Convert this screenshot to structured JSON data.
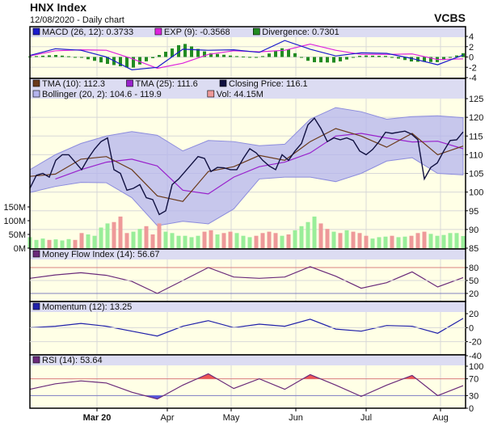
{
  "header": {
    "title": "HNX Index",
    "subtitle": "12/08/2020 - Daily chart",
    "brand": "VCBS"
  },
  "colors": {
    "plot_bg": "#ffffe6",
    "legend_bg": "#dcdcf2",
    "grid": "#d8d8d8",
    "macd": "#1a1acc",
    "exp": "#dd22dd",
    "divergence": "#228b22",
    "tma10": "#6b3b1b",
    "tma25": "#9922cc",
    "close": "#101040",
    "bollinger_fill": "#b4b4ee",
    "bollinger_line": "#8c8cdd",
    "vol_up": "#99ee99",
    "vol_down": "#ee9999",
    "indicator": "#6a2a7a",
    "momentum": "#2020aa",
    "over": "#ee5555",
    "under": "#5555dd",
    "upper_level": "#d88080",
    "lower_level": "#8080c0"
  },
  "chart_data": {
    "type": "line",
    "x_ticks": [
      "Mar 20",
      "Apr",
      "May",
      "Jun",
      "Jul",
      "Aug"
    ],
    "macd_panel": {
      "legend": [
        {
          "label": "MACD (26, 12): 0.3733",
          "color": "#1a1acc"
        },
        {
          "label": "EXP (9): -0.3568",
          "color": "#dd22dd"
        },
        {
          "label": "Divergence: 0.7301",
          "color": "#228b22"
        }
      ],
      "ylim": [
        -4,
        4
      ],
      "y_ticks": [
        4,
        2,
        0,
        -2,
        -4
      ],
      "macd": [
        0.3,
        1.6,
        1.3,
        0.0,
        -2.5,
        -2.0,
        1.5,
        1.3,
        1.4,
        0.9,
        3.2,
        1.5,
        0.2,
        0.8,
        0.7,
        -0.3,
        -1.5,
        0.37
      ],
      "exp": [
        0.2,
        1.2,
        1.4,
        1.3,
        -0.3,
        -2.2,
        -1.2,
        0.5,
        1.2,
        1.0,
        1.3,
        2.5,
        1.3,
        0.5,
        0.5,
        0.6,
        -0.5,
        -0.36
      ]
    },
    "price_panel": {
      "legend": [
        {
          "label": "TMA (10): 112.3",
          "color": "#6b3b1b"
        },
        {
          "label": "TMA (25): 111.6",
          "color": "#9922cc"
        },
        {
          "label": "Closing Price: 116.1",
          "color": "#101040"
        },
        {
          "label": "Bollinger (20, 2): 104.6 - 119.9",
          "color": "#b4b4ee"
        },
        {
          "label": "Vol: 44.15M",
          "color": "#ee9999"
        }
      ],
      "ylim": [
        85,
        125
      ],
      "y_ticks": [
        125,
        120,
        115,
        110,
        105,
        100,
        95,
        90,
        85
      ],
      "volume_ticks": [
        "150M",
        "100M",
        "50M",
        "0M"
      ],
      "close": [
        101,
        104.5,
        105,
        104,
        108.5,
        110,
        110,
        108,
        106,
        109,
        111.5,
        113.5,
        114.5,
        106,
        105,
        100.5,
        101,
        102,
        98.5,
        98,
        94,
        95,
        102,
        103.5,
        105.5,
        107.5,
        109.5,
        109,
        105.5,
        106.6,
        106.5,
        106,
        106,
        109,
        111.6,
        110.5,
        108.5,
        107,
        106,
        110,
        108.5,
        111,
        113,
        118,
        119.8,
        117,
        113.5,
        114.5,
        114,
        114.5,
        113.8,
        111,
        110,
        111.4,
        113.5,
        116,
        115.7,
        116,
        116.3,
        115.5,
        114,
        103.5,
        106.6,
        107.8,
        111,
        113.8,
        114,
        116.1
      ],
      "tma10": [
        104.2,
        104.8,
        108.8,
        109.5,
        106,
        99,
        97.5,
        105.5,
        106.8,
        109.8,
        108.5,
        113.5,
        117,
        115,
        112,
        115.7,
        110,
        112.3
      ],
      "tma25": [
        null,
        103.5,
        106,
        108,
        108.8,
        107,
        100.5,
        99.5,
        104,
        106.8,
        108,
        110.5,
        115,
        115.7,
        114.5,
        113.4,
        113.6,
        111.6
      ],
      "bollinger_upper": [
        106,
        110,
        113,
        115,
        116.2,
        115.2,
        111,
        113.8,
        113.5,
        112.4,
        112.8,
        119.5,
        122.6,
        121.5,
        119.5,
        120.2,
        120.4,
        119.9
      ],
      "bollinger_lower": [
        99.9,
        101.5,
        102.6,
        102.5,
        98.5,
        91,
        92.2,
        91.5,
        95.5,
        103.5,
        104,
        104,
        102.8,
        105,
        108.3,
        109.2,
        105,
        104.6
      ],
      "volume_m": [
        40,
        30,
        35,
        30,
        32,
        28,
        33,
        30,
        55,
        50,
        45,
        75,
        90,
        95,
        115,
        55,
        60,
        70,
        80,
        50,
        90,
        60,
        55,
        45,
        45,
        40,
        45,
        60,
        65,
        50,
        55,
        60,
        55,
        45,
        40,
        45,
        55,
        60,
        55,
        45,
        50,
        65,
        80,
        95,
        115,
        90,
        70,
        60,
        55,
        65,
        60,
        55,
        45,
        35,
        40,
        42,
        45,
        40,
        42,
        45,
        55,
        60,
        52,
        45,
        48,
        55,
        55,
        44.15
      ]
    },
    "mfi_panel": {
      "legend": [
        {
          "label": "Money Flow Index (14): 56.67",
          "color": "#6a2a7a"
        }
      ],
      "levels": [
        80,
        20
      ],
      "y_ticks": [
        80,
        50,
        20
      ],
      "values": [
        55,
        63,
        68,
        62,
        48,
        20,
        50,
        80,
        58,
        55,
        58,
        82,
        60,
        32,
        45,
        70,
        35,
        56.67
      ]
    },
    "momentum_panel": {
      "legend": [
        {
          "label": "Momentum (12): 13.25",
          "color": "#2020aa"
        }
      ],
      "ylim": [
        -40,
        20
      ],
      "y_ticks": [
        20,
        0,
        -20,
        -40
      ],
      "values": [
        0,
        2,
        6,
        2,
        -5,
        -12,
        2,
        10,
        0,
        5,
        2,
        12,
        -2,
        -5,
        3,
        2,
        -8,
        13.25
      ]
    },
    "rsi_panel": {
      "legend": [
        {
          "label": "RSI (14): 53.64",
          "color": "#6a2a7a"
        }
      ],
      "levels": [
        70,
        30
      ],
      "y_ticks": [
        100,
        70,
        30,
        0
      ],
      "values": [
        45,
        58,
        65,
        60,
        38,
        22,
        55,
        82,
        47,
        70,
        45,
        80,
        55,
        28,
        55,
        78,
        30,
        53.64
      ]
    }
  }
}
